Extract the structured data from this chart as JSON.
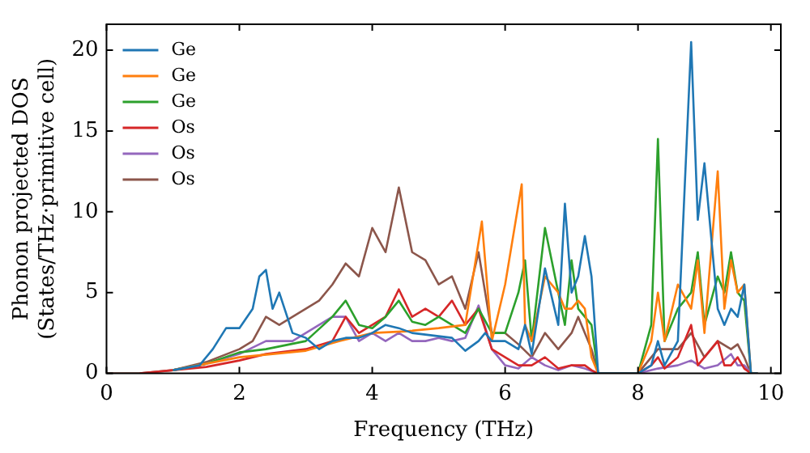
{
  "chart_data": {
    "type": "line",
    "xlabel": "Frequency (THz)",
    "ylabel": "Phonon projected DOS\n(States/THz·primitive cell)",
    "xlim": [
      0,
      10.15
    ],
    "ylim": [
      0,
      21.6
    ],
    "xticks": [
      0,
      2,
      4,
      6,
      8,
      10
    ],
    "yticks": [
      0,
      5,
      10,
      15,
      20
    ],
    "legend": "top left",
    "grid": false,
    "marker": "none",
    "line_style": "solid",
    "series": [
      {
        "name": "Ge",
        "color": "#1f77b4",
        "x": [
          1,
          1.4,
          1.6,
          1.8,
          2,
          2.2,
          2.3,
          2.4,
          2.5,
          2.6,
          2.8,
          3,
          3.2,
          3.4,
          3.6,
          3.8,
          4,
          4.2,
          4.4,
          4.6,
          4.8,
          5,
          5.2,
          5.4,
          5.6,
          5.7,
          5.8,
          6,
          6.2,
          6.3,
          6.4,
          6.6,
          6.8,
          6.9,
          7,
          7.1,
          7.2,
          7.3,
          7.4,
          7.5,
          8,
          8.2,
          8.3,
          8.4,
          8.6,
          8.8,
          8.9,
          9,
          9.2,
          9.3,
          9.4,
          9.5,
          9.6,
          9.7,
          9.8
        ],
        "values": [
          0.2,
          0.5,
          1.5,
          2.8,
          2.8,
          4,
          6,
          6.4,
          4,
          5,
          2.5,
          2.2,
          1.5,
          2,
          2.2,
          2.2,
          2.5,
          3,
          2.8,
          2.5,
          2.4,
          2.3,
          2.2,
          1.4,
          2,
          2.5,
          2,
          2,
          1.5,
          3,
          1.2,
          6.5,
          3,
          10.5,
          5,
          6,
          8.5,
          6,
          0,
          0,
          0,
          0.5,
          2,
          0.5,
          2,
          20.5,
          9.5,
          13,
          4,
          3,
          4,
          3.5,
          5.5,
          0,
          0
        ]
      },
      {
        "name": "Ge",
        "color": "#ff7f0e",
        "x": [
          1,
          1.5,
          2,
          2.5,
          3,
          3.5,
          4,
          4.5,
          5,
          5.4,
          5.65,
          5.8,
          6,
          6.25,
          6.3,
          6.4,
          6.6,
          6.8,
          6.9,
          7,
          7.1,
          7.2,
          7.3,
          7.4,
          8,
          8.2,
          8.3,
          8.4,
          8.6,
          8.8,
          8.9,
          9,
          9.2,
          9.3,
          9.4,
          9.5,
          9.6,
          9.7,
          9.8
        ],
        "values": [
          0.2,
          0.6,
          1,
          1.2,
          1.4,
          2,
          2.5,
          2.6,
          2.8,
          3,
          9.4,
          2,
          5.5,
          11.7,
          3,
          2,
          6,
          5,
          4,
          4,
          4.5,
          4,
          1,
          0,
          0,
          2,
          5,
          2,
          5.5,
          4,
          7,
          2.5,
          12.5,
          4,
          7,
          5,
          5.5,
          0,
          0
        ]
      },
      {
        "name": "Ge",
        "color": "#2ca02c",
        "x": [
          1,
          1.5,
          2,
          2.4,
          3,
          3.4,
          3.6,
          3.8,
          4,
          4.2,
          4.4,
          4.6,
          4.8,
          5,
          5.2,
          5.4,
          5.6,
          5.8,
          6,
          6.2,
          6.3,
          6.4,
          6.6,
          6.8,
          6.9,
          7,
          7.1,
          7.2,
          7.3,
          7.4,
          8,
          8.2,
          8.3,
          8.4,
          8.6,
          8.8,
          8.9,
          9,
          9.2,
          9.3,
          9.4,
          9.5,
          9.6,
          9.7,
          9.8
        ],
        "values": [
          0.2,
          0.6,
          1.3,
          1.5,
          2,
          3.5,
          4.5,
          3,
          2.8,
          3.5,
          4.5,
          3.2,
          3,
          3.5,
          3,
          2.5,
          4,
          2.5,
          2.5,
          5,
          7,
          2,
          9,
          5,
          3,
          7,
          4,
          3.5,
          3,
          0,
          0,
          3,
          14.5,
          2,
          4,
          5,
          7.5,
          3,
          6,
          5,
          7.5,
          5,
          4.5,
          0,
          0
        ]
      },
      {
        "name": "Os",
        "color": "#d62728",
        "x": [
          0.5,
          1,
          1.5,
          2,
          2.4,
          3,
          3.4,
          3.6,
          3.8,
          4,
          4.2,
          4.4,
          4.6,
          4.8,
          5,
          5.2,
          5.4,
          5.6,
          5.8,
          6,
          6.2,
          6.4,
          6.6,
          6.8,
          7,
          7.2,
          7.3,
          7.4,
          8,
          8.2,
          8.3,
          8.4,
          8.6,
          8.8,
          8.9,
          9,
          9.2,
          9.3,
          9.4,
          9.5,
          9.6,
          9.7,
          9.8
        ],
        "values": [
          0,
          0.2,
          0.4,
          0.8,
          1.2,
          1.5,
          2,
          3.5,
          2.5,
          3,
          3.5,
          5.2,
          3.5,
          4,
          3.5,
          4.5,
          3,
          4,
          1.5,
          1,
          0.5,
          0.5,
          1,
          0.3,
          0.5,
          0.5,
          0.2,
          0,
          0,
          0.5,
          1,
          0.3,
          1,
          3,
          0.5,
          1,
          2,
          0.5,
          0.5,
          1,
          0.3,
          0,
          0
        ]
      },
      {
        "name": "Os",
        "color": "#9467bd",
        "x": [
          1,
          1.5,
          2,
          2.4,
          2.8,
          3,
          3.4,
          3.6,
          3.8,
          4,
          4.2,
          4.4,
          4.6,
          4.8,
          5,
          5.2,
          5.4,
          5.6,
          5.8,
          6,
          6.2,
          6.4,
          6.6,
          6.8,
          7,
          7.2,
          7.4,
          8,
          8.3,
          8.6,
          8.8,
          9,
          9.2,
          9.4,
          9.5,
          9.6,
          9.7,
          9.8
        ],
        "values": [
          0.2,
          0.6,
          1.2,
          2,
          2,
          2.5,
          3.5,
          3.5,
          2,
          2.5,
          2,
          2.5,
          2,
          2,
          2.2,
          2,
          2.2,
          4.2,
          1.5,
          0.5,
          0.3,
          1,
          0.5,
          0.2,
          0.5,
          0.3,
          0,
          0,
          0.3,
          0.5,
          0.8,
          0.3,
          0.5,
          1.2,
          0.5,
          0.5,
          0,
          0
        ]
      },
      {
        "name": "Os",
        "color": "#8c564b",
        "x": [
          0,
          0.5,
          1,
          1.5,
          2,
          2.2,
          2.4,
          2.6,
          2.8,
          3,
          3.2,
          3.4,
          3.6,
          3.8,
          4,
          4.2,
          4.4,
          4.6,
          4.8,
          5,
          5.2,
          5.4,
          5.6,
          5.8,
          6,
          6.2,
          6.4,
          6.6,
          6.8,
          7,
          7.1,
          7.2,
          7.3,
          7.4,
          8,
          8.2,
          8.3,
          8.6,
          8.8,
          9,
          9.2,
          9.4,
          9.5,
          9.6,
          9.7,
          9.8
        ],
        "values": [
          0,
          0,
          0.2,
          0.7,
          1.5,
          2,
          3.5,
          3,
          3.5,
          4,
          4.5,
          5.5,
          6.8,
          6,
          9,
          7.5,
          11.5,
          7.5,
          7,
          5.5,
          6,
          4,
          7.5,
          2.5,
          2.5,
          1.8,
          1,
          2.5,
          1.5,
          2.5,
          3.5,
          2.5,
          1.5,
          0,
          0,
          1,
          1.5,
          1.5,
          2.5,
          1,
          2,
          1.5,
          1.8,
          1,
          0,
          0
        ]
      }
    ]
  }
}
